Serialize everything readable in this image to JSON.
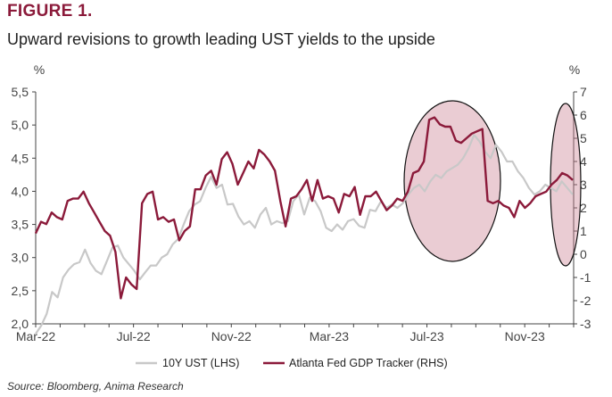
{
  "header": {
    "figure_label": "FIGURE 1.",
    "title": "Upward revisions to growth leading UST yields to the upside"
  },
  "footer": {
    "source": "Source: Bloomberg, Anima Research"
  },
  "chart_data": {
    "type": "line",
    "x_ticks": [
      "Mar-22",
      "Jul-22",
      "Nov-22",
      "Mar-23",
      "Jul-23",
      "Nov-23"
    ],
    "x_range": [
      "2022-03",
      "2024-01"
    ],
    "left_axis": {
      "unit": "%",
      "ylim": [
        2.0,
        5.5
      ],
      "ticks": [
        "2,0",
        "2,5",
        "3,0",
        "3,5",
        "4,0",
        "4,5",
        "5,0",
        "5,5"
      ]
    },
    "right_axis": {
      "unit": "%",
      "ylim": [
        -3,
        7
      ],
      "ticks": [
        "-3",
        "-2",
        "-1",
        "0",
        "1",
        "2",
        "3",
        "4",
        "5",
        "6",
        "7"
      ]
    },
    "series": [
      {
        "name": "10Y UST (LHS)",
        "axis": "left",
        "color": "#c8c8c8",
        "values": [
          1.85,
          1.97,
          2.15,
          2.48,
          2.4,
          2.7,
          2.82,
          2.9,
          2.93,
          3.12,
          2.92,
          2.8,
          2.75,
          2.95,
          3.15,
          3.18,
          3.0,
          2.9,
          2.8,
          2.67,
          2.78,
          2.88,
          2.88,
          3.0,
          3.05,
          3.2,
          3.28,
          3.5,
          3.7,
          3.8,
          3.85,
          4.05,
          4.22,
          4.05,
          4.1,
          3.8,
          3.81,
          3.62,
          3.5,
          3.55,
          3.45,
          3.65,
          3.75,
          3.5,
          3.55,
          3.52,
          3.55,
          3.85,
          3.95,
          3.65,
          3.9,
          3.85,
          3.7,
          3.45,
          3.4,
          3.5,
          3.42,
          3.55,
          3.58,
          3.48,
          3.45,
          3.72,
          3.7,
          3.85,
          3.75,
          3.8,
          3.75,
          3.82,
          3.95,
          4.05,
          4.1,
          4.0,
          4.15,
          4.25,
          4.2,
          4.3,
          4.35,
          4.4,
          4.5,
          4.65,
          4.85,
          4.75,
          4.6,
          4.5,
          4.7,
          4.6,
          4.45,
          4.45,
          4.3,
          4.2,
          4.05,
          3.95,
          4.0,
          4.1,
          4.05,
          4.0,
          4.15,
          4.05,
          3.95
        ]
      },
      {
        "name": "Atlanta Fed GDP Tracker (RHS)",
        "axis": "right",
        "color": "#8b1a3a",
        "values": [
          0.9,
          1.4,
          1.3,
          1.8,
          1.6,
          1.5,
          2.3,
          2.4,
          2.4,
          2.7,
          2.2,
          1.8,
          1.4,
          1.0,
          0.8,
          0.1,
          -1.9,
          -1.0,
          -1.3,
          -1.5,
          2.2,
          2.6,
          2.7,
          1.5,
          1.6,
          1.4,
          1.5,
          0.6,
          1.0,
          1.2,
          2.8,
          2.8,
          3.4,
          3.6,
          3.0,
          4.1,
          4.4,
          3.9,
          3.0,
          3.5,
          4.0,
          3.7,
          4.5,
          4.3,
          4.0,
          3.6,
          2.3,
          1.2,
          2.4,
          2.5,
          2.8,
          3.2,
          2.3,
          3.2,
          2.4,
          2.5,
          2.4,
          1.8,
          2.6,
          2.5,
          2.9,
          1.7,
          2.5,
          2.5,
          2.7,
          2.3,
          1.9,
          2.1,
          2.4,
          2.3,
          2.7,
          3.5,
          3.6,
          4.0,
          5.8,
          5.9,
          5.6,
          5.5,
          5.5,
          4.9,
          4.8,
          5.0,
          5.2,
          5.3,
          5.4,
          2.3,
          2.2,
          2.3,
          2.1,
          2.0,
          1.6,
          2.3,
          2.0,
          2.2,
          2.5,
          2.6,
          2.7,
          3.0,
          3.2,
          3.5,
          3.4,
          3.2
        ]
      }
    ],
    "highlight_regions": [
      "circle around Jul-23 to Oct-23 surge",
      "circle around Dec-23 to Jan-24"
    ],
    "legend": {
      "placement": "bottom-center",
      "entries": [
        "10Y UST (LHS)",
        "Atlanta Fed GDP Tracker (RHS)"
      ]
    },
    "grid": false
  }
}
